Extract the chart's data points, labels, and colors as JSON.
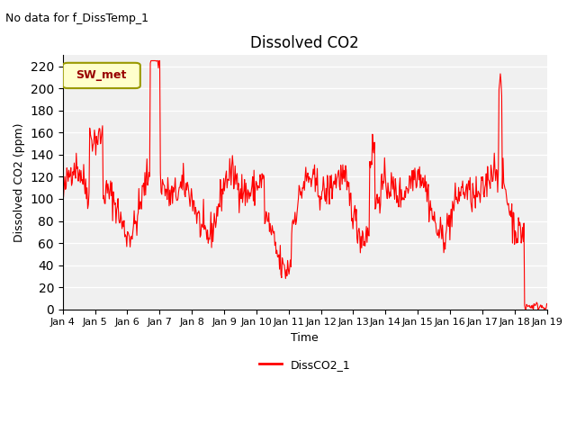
{
  "title": "Dissolved CO2",
  "subtitle": "No data for f_DissTemp_1",
  "ylabel": "Dissolved CO2 (ppm)",
  "xlabel": "Time",
  "legend_label": "DissCO2_1",
  "line_color": "red",
  "ylim": [
    0,
    230
  ],
  "yticks": [
    0,
    20,
    40,
    60,
    80,
    100,
    120,
    140,
    160,
    180,
    200,
    220
  ],
  "xtick_labels": [
    "Jan 4",
    "Jan 5",
    "Jan 6",
    "Jan 7",
    "Jan 8",
    "Jan 9",
    "Jan 10",
    "Jan 11",
    "Jan 12",
    "Jan 13",
    "Jan 14",
    "Jan 15",
    "Jan 16",
    "Jan 17",
    "Jan 18",
    "Jan 19"
  ],
  "legend_box_color": "#ffffcc",
  "legend_box_edge": "#999900",
  "legend_text_color": "#990000",
  "plot_bg_color": "#f0f0f0",
  "sw_met_label": "SW_met"
}
